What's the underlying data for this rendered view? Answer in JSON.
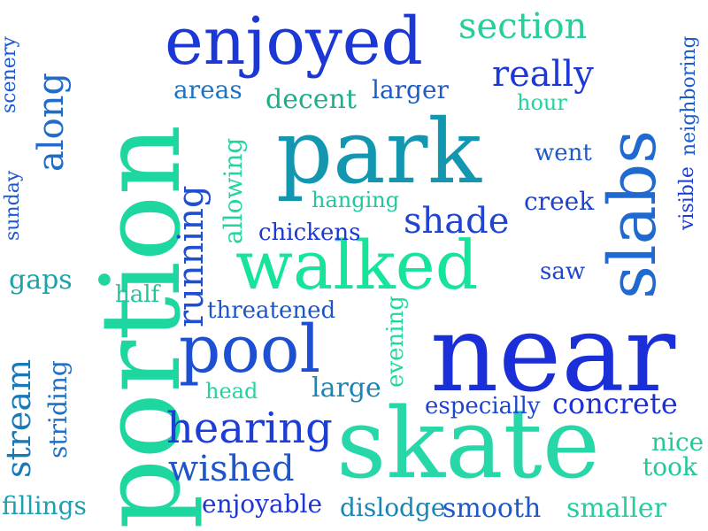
{
  "words": [
    {
      "text": "portion",
      "color": "#1ed6a0",
      "vertical": true
    },
    {
      "text": "near",
      "color": "#1a2fd8",
      "vertical": false
    },
    {
      "text": "skate",
      "color": "#27d7a7",
      "vertical": false
    },
    {
      "text": "park",
      "color": "#1397b0",
      "vertical": false
    },
    {
      "text": "walked",
      "color": "#16e49b",
      "vertical": false
    },
    {
      "text": "slabs",
      "color": "#1f6ad0",
      "vertical": true
    },
    {
      "text": "enjoyed",
      "color": "#1b37d6",
      "vertical": false
    },
    {
      "text": "pool",
      "color": "#1d4fd2",
      "vertical": false
    },
    {
      "text": "hearing",
      "color": "#1d3ed6",
      "vertical": false
    },
    {
      "text": "section",
      "color": "#24cf9c",
      "vertical": false
    },
    {
      "text": "shade",
      "color": "#1f45d1",
      "vertical": false
    },
    {
      "text": "wished",
      "color": "#1d55cc",
      "vertical": false
    },
    {
      "text": "running",
      "color": "#1f4fd0",
      "vertical": true
    },
    {
      "text": "really",
      "color": "#1d38d4",
      "vertical": false
    },
    {
      "text": "along",
      "color": "#1f6ccc",
      "vertical": true
    },
    {
      "text": "stream",
      "color": "#157ab8",
      "vertical": true
    },
    {
      "text": "concrete",
      "color": "#1c2fd4",
      "vertical": false
    },
    {
      "text": "smooth",
      "color": "#1d58cc",
      "vertical": false
    },
    {
      "text": "enjoyable",
      "color": "#1c35d4",
      "vertical": false
    },
    {
      "text": "dislodge",
      "color": "#1a86b6",
      "vertical": false
    },
    {
      "text": "smaller",
      "color": "#23cf9f",
      "vertical": false
    },
    {
      "text": "larger",
      "color": "#1d5bc9",
      "vertical": false
    },
    {
      "text": "decent",
      "color": "#1ab08f",
      "vertical": false
    },
    {
      "text": "areas",
      "color": "#1e74c0",
      "vertical": false
    },
    {
      "text": "threatened",
      "color": "#1e55c6",
      "vertical": false
    },
    {
      "text": "large",
      "color": "#1a86b6",
      "vertical": false
    },
    {
      "text": "especially",
      "color": "#1e44d2",
      "vertical": false
    },
    {
      "text": "chickens",
      "color": "#1c37d2",
      "vertical": false
    },
    {
      "text": "hanging",
      "color": "#22c79c",
      "vertical": false
    },
    {
      "text": "creek",
      "color": "#1d42d2",
      "vertical": false
    },
    {
      "text": "went",
      "color": "#1d58c9",
      "vertical": false
    },
    {
      "text": "hour",
      "color": "#22d49f",
      "vertical": false
    },
    {
      "text": "saw",
      "color": "#1d44cf",
      "vertical": false
    },
    {
      "text": "nice",
      "color": "#24c99b",
      "vertical": false
    },
    {
      "text": "took",
      "color": "#23c79b",
      "vertical": false
    },
    {
      "text": "fillings",
      "color": "#1c9fb2",
      "vertical": false
    },
    {
      "text": "gaps",
      "color": "#1aa3a8",
      "vertical": false
    },
    {
      "text": "half",
      "color": "#22c49d",
      "vertical": false
    },
    {
      "text": "head",
      "color": "#22d49f",
      "vertical": false
    },
    {
      "text": "allowing",
      "color": "#22d4a0",
      "vertical": true
    },
    {
      "text": "evening",
      "color": "#22d8a2",
      "vertical": true
    },
    {
      "text": "striding",
      "color": "#1f70c6",
      "vertical": true
    },
    {
      "text": "scenery",
      "color": "#1d58cc",
      "vertical": true
    },
    {
      "text": "sunday",
      "color": "#1d58cc",
      "vertical": true
    },
    {
      "text": "visible",
      "color": "#1b3cd2",
      "vertical": true
    },
    {
      "text": "neighboring",
      "color": "#1f5acb",
      "vertical": true
    }
  ]
}
